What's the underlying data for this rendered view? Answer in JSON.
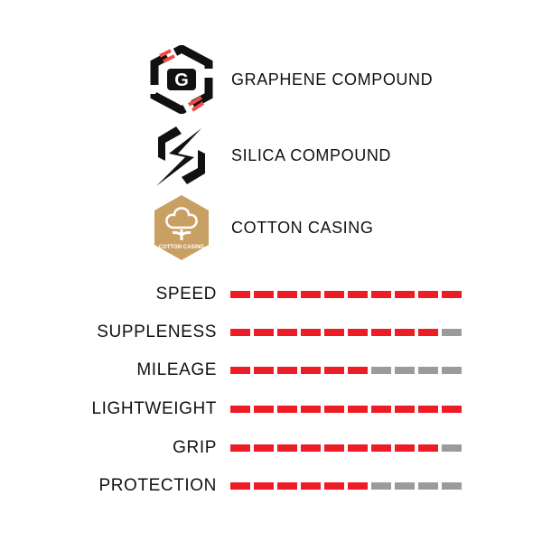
{
  "features": [
    {
      "label": "GRAPHENE COMPOUND",
      "icon": "graphene-icon"
    },
    {
      "label": "SILICA COMPOUND",
      "icon": "silica-icon"
    },
    {
      "label": "COTTON CASING",
      "icon": "cotton-casing-icon",
      "badge_text": "COTTON CASING"
    }
  ],
  "ratings": {
    "max": 10,
    "items": [
      {
        "label": "SPEED",
        "value": 10
      },
      {
        "label": "SUPPLENESS",
        "value": 9
      },
      {
        "label": "MILEAGE",
        "value": 6
      },
      {
        "label": "LIGHTWEIGHT",
        "value": 10
      },
      {
        "label": "GRIP",
        "value": 9
      },
      {
        "label": "PROTECTION",
        "value": 6
      }
    ]
  },
  "colors": {
    "filled": "#ee1c25",
    "empty": "#9b9b9b",
    "cotton": "#c9a063",
    "accent": "#ef4b45"
  }
}
